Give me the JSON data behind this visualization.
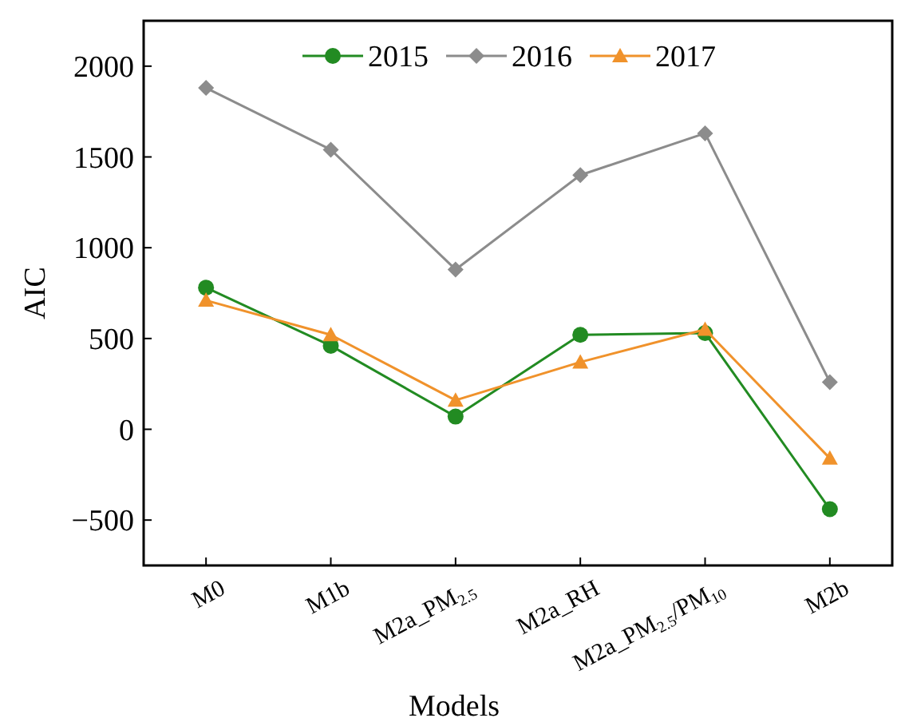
{
  "chart_data": {
    "type": "line",
    "xlabel": "Models",
    "ylabel": "AIC",
    "categories": [
      "M0",
      "M1b",
      "M2a_PM$_{2.5}$",
      "M2a_RH",
      "M2a_PM$_{2.5}$/PM$_{10}$",
      "M2b"
    ],
    "series": [
      {
        "name": "2015",
        "color": "#228b22",
        "marker": "circle",
        "values": [
          780,
          460,
          70,
          520,
          530,
          -440
        ]
      },
      {
        "name": "2016",
        "color": "#8c8c8c",
        "marker": "diamond",
        "values": [
          1880,
          1540,
          880,
          1400,
          1630,
          260
        ]
      },
      {
        "name": "2017",
        "color": "#f0922b",
        "marker": "triangle",
        "values": [
          710,
          520,
          160,
          370,
          550,
          -160
        ]
      }
    ],
    "ylim": [
      -750,
      2250
    ],
    "yticks": [
      -500,
      0,
      500,
      1000,
      1500,
      2000
    ],
    "grid": false,
    "legend": "top"
  }
}
